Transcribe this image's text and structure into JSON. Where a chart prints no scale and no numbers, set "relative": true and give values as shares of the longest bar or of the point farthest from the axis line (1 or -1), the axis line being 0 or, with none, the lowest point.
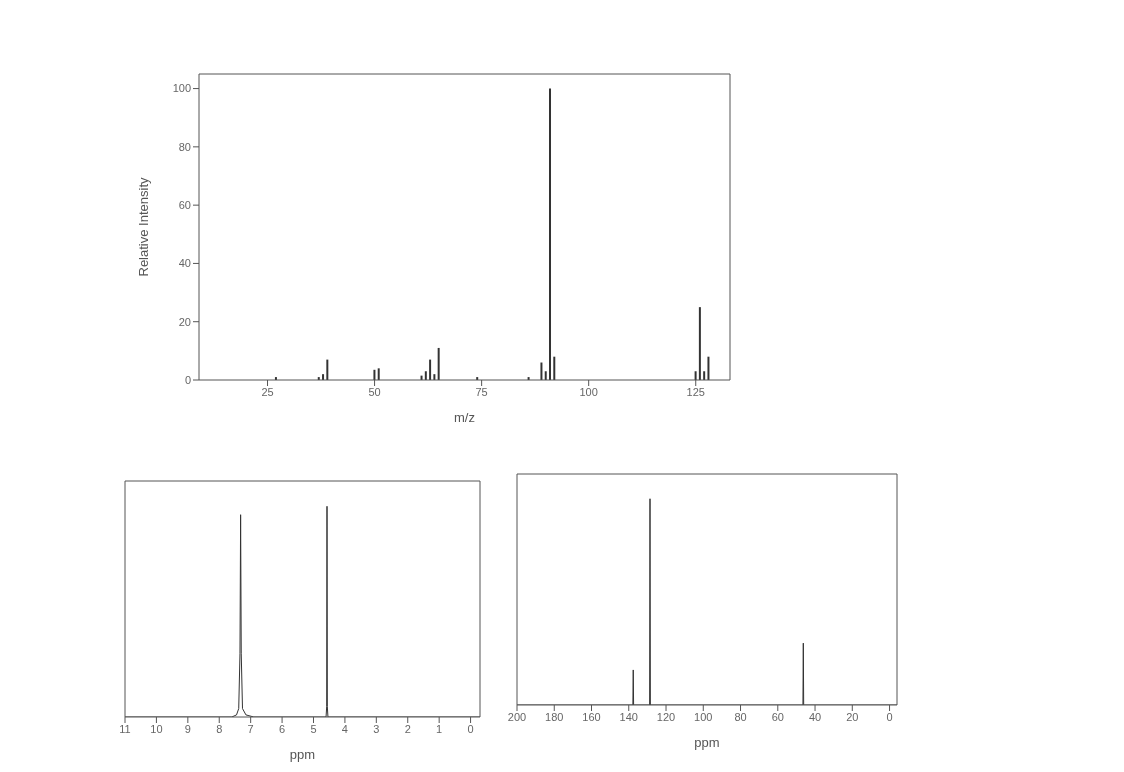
{
  "chart_data": [
    {
      "type": "bar",
      "xlabel": "m/z",
      "ylabel": "Relative Intensity",
      "color": "#333333",
      "x": [
        27,
        37,
        38,
        39,
        50,
        51,
        61,
        62,
        63,
        64,
        65,
        74,
        86,
        89,
        90,
        91,
        92,
        125,
        126,
        127,
        128
      ],
      "values": [
        1,
        1,
        2,
        7,
        3.5,
        4,
        1.5,
        3,
        7,
        2,
        11,
        1,
        1,
        6,
        3,
        100,
        8,
        3,
        25,
        3,
        8
      ],
      "xlim": [
        9,
        133
      ],
      "xticks": [
        25,
        50,
        75,
        100,
        125
      ],
      "ylim": [
        0,
        105
      ],
      "yticks": [
        0,
        20,
        40,
        60,
        80,
        100
      ]
    },
    {
      "type": "line",
      "xlabel": "ppm",
      "relative": true,
      "color": "#333333",
      "x": [
        11,
        7.6,
        7.45,
        7.38,
        7.34,
        7.32,
        7.3,
        7.26,
        7.15,
        6.9,
        4.6,
        4.58,
        4.57,
        4.56,
        4.54,
        -0.3
      ],
      "values": [
        0,
        0,
        0.01,
        0.04,
        0.3,
        0.96,
        0.3,
        0.04,
        0.01,
        0,
        0,
        0.05,
        1,
        0.05,
        0,
        0
      ],
      "xlim": [
        11,
        -0.3
      ],
      "xticks": [
        11,
        10,
        9,
        8,
        7,
        6,
        5,
        4,
        3,
        2,
        1,
        0
      ]
    },
    {
      "type": "line",
      "xlabel": "ppm",
      "relative": true,
      "color": "#333333",
      "x": [
        200,
        137.8,
        137.6,
        137.4,
        128.8,
        128.6,
        128.4,
        46.5,
        46.3,
        46.1,
        -4
      ],
      "values": [
        0,
        0,
        0.17,
        0,
        0,
        1,
        0,
        0,
        0.3,
        0,
        0
      ],
      "xlim": [
        200,
        -4
      ],
      "xticks": [
        200,
        180,
        160,
        140,
        120,
        100,
        80,
        60,
        40,
        20,
        0
      ]
    }
  ]
}
